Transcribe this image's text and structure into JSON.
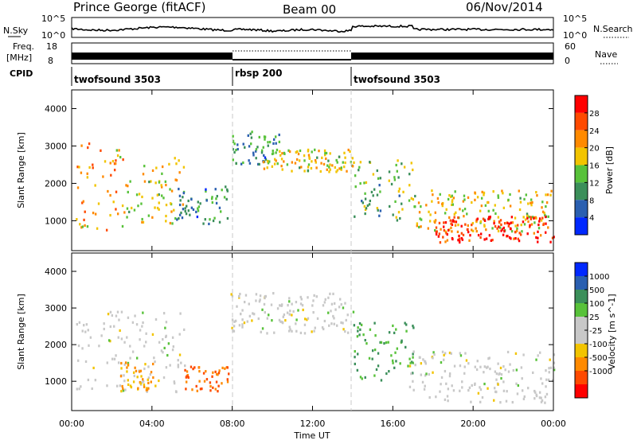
{
  "header": {
    "station": "Prince George (fitACF)",
    "beam": "Beam 00",
    "date": "06/Nov/2014"
  },
  "nsky": {
    "label": "N.Sky",
    "ticks_left": [
      "10^5",
      "10^0"
    ],
    "ticks_right": [
      "10^5",
      "10^0"
    ],
    "right_label": "N.Search"
  },
  "freq": {
    "label_top": "Freq.",
    "label_unit": "[MHz]",
    "ticks_left": [
      "18",
      "8"
    ],
    "ticks_right": [
      "60",
      "0"
    ],
    "right_label": "Nave"
  },
  "cpid": {
    "label": "CPID",
    "segments": [
      {
        "name": "twofsound 3503",
        "start_hour": 0,
        "end_hour": 8
      },
      {
        "name": "rbsp 200",
        "start_hour": 8,
        "end_hour": 14
      },
      {
        "name": "twofsound 3503",
        "start_hour": 14,
        "end_hour": 24
      }
    ]
  },
  "xaxis": {
    "label": "Time UT",
    "ticks": [
      "00:00",
      "04:00",
      "08:00",
      "12:00",
      "16:00",
      "20:00",
      "00:00"
    ]
  },
  "colors": {
    "power_scale": [
      "#0028ff",
      "#2a5fb0",
      "#3b8f5a",
      "#58c23a",
      "#f2c400",
      "#ff8a00",
      "#ff4a00",
      "#ff0000"
    ],
    "velocity_scale": [
      "#ff0000",
      "#ff4a00",
      "#ff8a00",
      "#f2c400",
      "#c8c8c8",
      "#c8c8c8",
      "#58c23a",
      "#3b8f5a",
      "#2a5fb0",
      "#0028ff"
    ]
  },
  "chart_data": [
    {
      "type": "heatmap",
      "title": "",
      "quantity": "Power",
      "xlabel": "Time UT",
      "ylabel": "Slant Range [km]",
      "xlim_hours": [
        0,
        24
      ],
      "ylim": [
        200,
        4500
      ],
      "yticks": [
        "1000",
        "2000",
        "3000",
        "4000"
      ],
      "colorbar": {
        "label": "Power [dB]",
        "ticks": [
          "4",
          "8",
          "12",
          "16",
          "20",
          "24",
          "28"
        ],
        "range": [
          0,
          30
        ]
      },
      "regions": [
        {
          "t_start": 0.2,
          "t_end": 2.6,
          "r_low": 700,
          "r_high": 3200,
          "level": 20
        },
        {
          "t_start": 2.6,
          "t_end": 5.6,
          "r_low": 900,
          "r_high": 2700,
          "level": 16
        },
        {
          "t_start": 5.2,
          "t_end": 7.8,
          "r_low": 900,
          "r_high": 1900,
          "level": 8
        },
        {
          "t_start": 7.9,
          "t_end": 10.4,
          "r_low": 2500,
          "r_high": 3400,
          "level": 8
        },
        {
          "t_start": 9.5,
          "t_end": 14.0,
          "r_low": 2300,
          "r_high": 2900,
          "level": 16
        },
        {
          "t_start": 14.0,
          "t_end": 17.0,
          "r_low": 1000,
          "r_high": 2600,
          "level": 12
        },
        {
          "t_start": 16.8,
          "t_end": 24.0,
          "r_low": 700,
          "r_high": 1800,
          "level": 16
        },
        {
          "t_start": 18.0,
          "t_end": 24.0,
          "r_low": 400,
          "r_high": 1100,
          "level": 28
        }
      ]
    },
    {
      "type": "heatmap",
      "title": "",
      "quantity": "Velocity",
      "xlabel": "Time UT",
      "ylabel": "Slant Range [km]",
      "xlim_hours": [
        0,
        24
      ],
      "ylim": [
        200,
        4500
      ],
      "yticks": [
        "1000",
        "2000",
        "3000",
        "4000"
      ],
      "colorbar": {
        "label": "Velocity [m s^-1]",
        "ticks": [
          "1000",
          "500",
          "100",
          "25",
          "-25",
          "-100",
          "-500",
          "-1000"
        ]
      },
      "regions": [
        {
          "t_start": 0.2,
          "t_end": 5.6,
          "r_low": 700,
          "r_high": 2900,
          "velocity": 0
        },
        {
          "t_start": 2.4,
          "t_end": 4.2,
          "r_low": 700,
          "r_high": 1500,
          "velocity": -100
        },
        {
          "t_start": 5.6,
          "t_end": 7.8,
          "r_low": 700,
          "r_high": 1400,
          "velocity": -500
        },
        {
          "t_start": 7.9,
          "t_end": 14.0,
          "r_low": 2300,
          "r_high": 3400,
          "velocity": 0
        },
        {
          "t_start": 14.0,
          "t_end": 17.0,
          "r_low": 1000,
          "r_high": 2600,
          "velocity": 100
        },
        {
          "t_start": 16.8,
          "t_end": 24.0,
          "r_low": 400,
          "r_high": 1800,
          "velocity": 0
        }
      ]
    }
  ]
}
